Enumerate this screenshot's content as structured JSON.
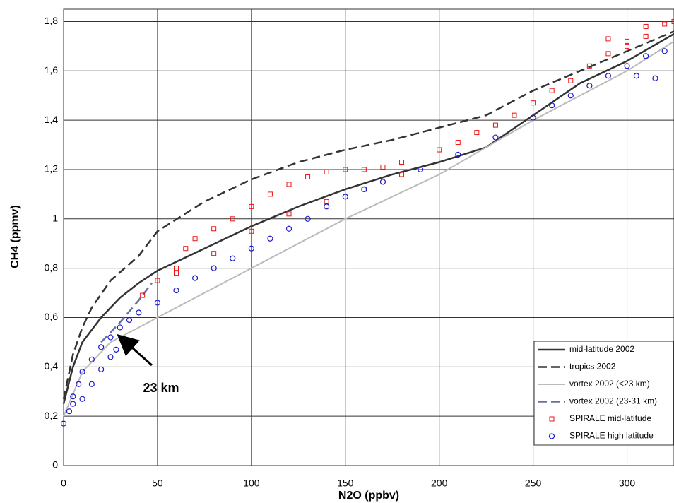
{
  "chart_data": {
    "type": "line",
    "x_label": "N2O (ppbv)",
    "y_label": "CH4 (ppmv)",
    "xlim": [
      0,
      325
    ],
    "ylim": [
      0,
      1.85
    ],
    "xticks": [
      0,
      50,
      100,
      150,
      200,
      250,
      300
    ],
    "yticks": [
      0,
      {
        "value": 0.2,
        "label": "0,2"
      },
      {
        "value": 0.4,
        "label": "0,4"
      },
      {
        "value": 0.6,
        "label": "0,6"
      },
      {
        "value": 0.8,
        "label": "0,8"
      },
      1,
      {
        "value": 1.2,
        "label": "1,2"
      },
      {
        "value": 1.4,
        "label": "1,4"
      },
      {
        "value": 1.6,
        "label": "1,6"
      },
      {
        "value": 1.8,
        "label": "1,8"
      }
    ],
    "grid": true,
    "legend": "lower right",
    "annotation": "23 km",
    "series": [
      {
        "name": "mid-latitude 2002",
        "color": "#333333",
        "mode": "line",
        "dash": false,
        "x": [
          0,
          5,
          10,
          20,
          30,
          40,
          50,
          75,
          100,
          125,
          150,
          175,
          200,
          225,
          250,
          275,
          300,
          325
        ],
        "values": [
          0.25,
          0.4,
          0.5,
          0.6,
          0.68,
          0.74,
          0.79,
          0.88,
          0.97,
          1.05,
          1.12,
          1.18,
          1.23,
          1.29,
          1.42,
          1.55,
          1.64,
          1.75
        ]
      },
      {
        "name": "tropics 2002",
        "color": "#333333",
        "mode": "line",
        "dash": true,
        "x": [
          0,
          5,
          10,
          15,
          25,
          40,
          50,
          75,
          100,
          125,
          150,
          175,
          200,
          225,
          250,
          275,
          300,
          325
        ],
        "values": [
          0.27,
          0.45,
          0.56,
          0.64,
          0.75,
          0.85,
          0.95,
          1.07,
          1.16,
          1.23,
          1.28,
          1.32,
          1.37,
          1.42,
          1.52,
          1.6,
          1.68,
          1.76
        ]
      },
      {
        "name": "vortex 2002 (<23 km)",
        "color": "#bbbbbb",
        "mode": "line",
        "dash": false,
        "x": [
          0,
          10,
          25,
          50,
          100,
          150,
          200,
          250,
          300,
          325
        ],
        "values": [
          0.2,
          0.38,
          0.5,
          0.6,
          0.8,
          1.0,
          1.18,
          1.4,
          1.6,
          1.72
        ]
      },
      {
        "name": "vortex 2002 (23-31 km)",
        "color": "#6670a8",
        "mode": "line",
        "dash": true,
        "x": [
          20,
          30,
          40,
          47
        ],
        "values": [
          0.5,
          0.58,
          0.67,
          0.74
        ]
      },
      {
        "name": "SPIRALE mid-latitude",
        "color": "#ee1111",
        "mode": "markers",
        "marker": "square",
        "x": [
          42,
          50,
          60,
          65,
          70,
          80,
          90,
          100,
          110,
          120,
          130,
          140,
          150,
          160,
          170,
          180,
          60,
          80,
          100,
          120,
          140,
          160,
          180,
          200,
          210,
          220,
          230,
          240,
          250,
          260,
          270,
          280,
          290,
          300,
          310,
          320,
          325,
          310,
          300,
          290
        ],
        "values": [
          0.69,
          0.75,
          0.8,
          0.88,
          0.92,
          0.96,
          1.0,
          1.05,
          1.1,
          1.14,
          1.17,
          1.19,
          1.2,
          1.2,
          1.21,
          1.23,
          0.78,
          0.86,
          0.95,
          1.02,
          1.07,
          1.12,
          1.18,
          1.28,
          1.31,
          1.35,
          1.38,
          1.42,
          1.47,
          1.52,
          1.56,
          1.62,
          1.67,
          1.7,
          1.74,
          1.79,
          1.8,
          1.78,
          1.72,
          1.73
        ]
      },
      {
        "name": "SPIRALE high latitude",
        "color": "#1a1acc",
        "mode": "markers",
        "marker": "circle",
        "x": [
          0,
          3,
          5,
          8,
          10,
          15,
          20,
          25,
          30,
          35,
          40,
          50,
          60,
          70,
          80,
          90,
          100,
          110,
          120,
          130,
          140,
          150,
          160,
          170,
          190,
          210,
          230,
          250,
          260,
          270,
          280,
          290,
          300,
          310,
          320,
          10,
          15,
          20,
          25,
          28,
          5,
          305,
          315
        ],
        "values": [
          0.17,
          0.22,
          0.28,
          0.33,
          0.38,
          0.43,
          0.48,
          0.52,
          0.56,
          0.59,
          0.62,
          0.66,
          0.71,
          0.76,
          0.8,
          0.84,
          0.88,
          0.92,
          0.96,
          1.0,
          1.05,
          1.09,
          1.12,
          1.15,
          1.2,
          1.26,
          1.33,
          1.41,
          1.46,
          1.5,
          1.54,
          1.58,
          1.62,
          1.66,
          1.68,
          0.27,
          0.33,
          0.39,
          0.44,
          0.47,
          0.25,
          1.58,
          1.57
        ]
      }
    ]
  }
}
